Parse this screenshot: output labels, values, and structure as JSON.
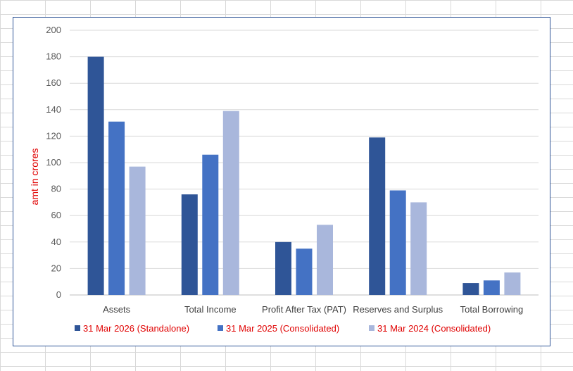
{
  "chart_data": {
    "type": "bar",
    "title": "",
    "xlabel": "",
    "ylabel": "amt in crores",
    "ylim": [
      0,
      200
    ],
    "yticks": [
      0,
      20,
      40,
      60,
      80,
      100,
      120,
      140,
      160,
      180,
      200
    ],
    "grid": true,
    "legend_position": "bottom",
    "categories": [
      "Assets",
      "Total Income",
      "Profit After Tax (PAT)",
      "Reserves and Surplus",
      "Total Borrowing"
    ],
    "series": [
      {
        "name": "31 Mar 2026 (Standalone)",
        "color": "#2f5597",
        "values": [
          180,
          76,
          40,
          119,
          9
        ]
      },
      {
        "name": "31 Mar 2025 (Consolidated)",
        "color": "#4472c4",
        "values": [
          131,
          106,
          35,
          79,
          11
        ]
      },
      {
        "name": "31 Mar 2024 (Consolidated)",
        "color": "#a9b7dc",
        "values": [
          97,
          139,
          53,
          70,
          17
        ]
      }
    ]
  }
}
